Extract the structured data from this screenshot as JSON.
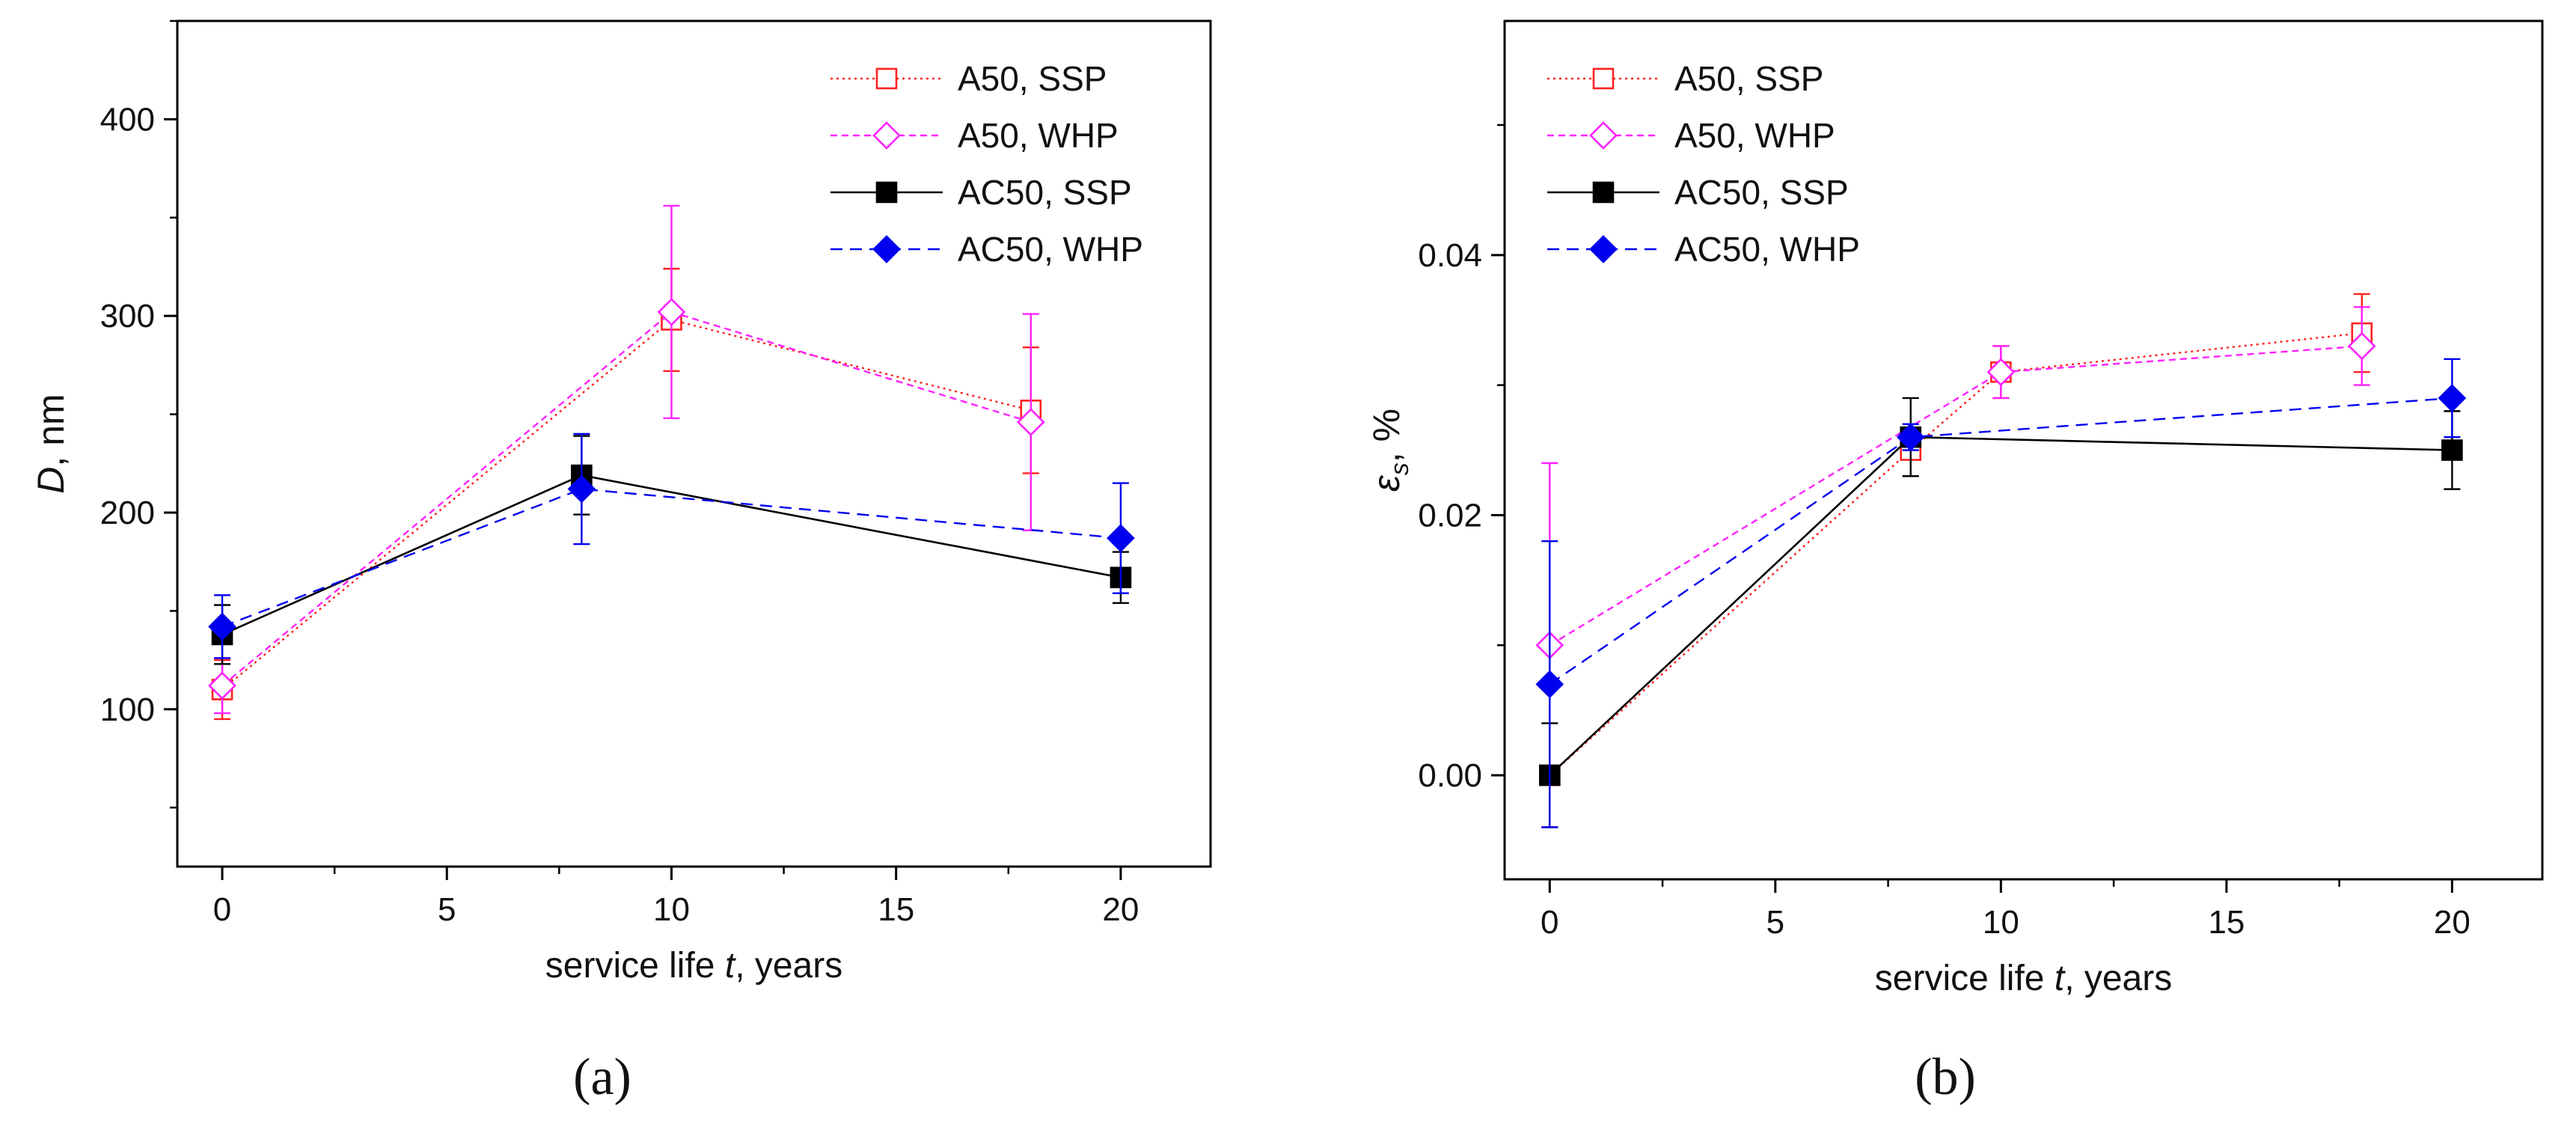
{
  "figure": {
    "panels": [
      "(a)",
      "(b)"
    ]
  },
  "series_styles": [
    {
      "name": "A50, SSP",
      "color": "#ff2020",
      "marker": "square-open",
      "line": "dotted"
    },
    {
      "name": "A50, WHP",
      "color": "#ff22ff",
      "marker": "diamond-open",
      "line": "short-dash"
    },
    {
      "name": "AC50, SSP",
      "color": "#000000",
      "marker": "square-filled",
      "line": "solid"
    },
    {
      "name": "AC50, WHP",
      "color": "#0000ee",
      "marker": "diamond-filled",
      "line": "dashed"
    }
  ],
  "chart_data": [
    {
      "type": "line",
      "panel": "(a)",
      "title": "",
      "xlabel_prefix": "service life ",
      "xlabel_var": "t",
      "xlabel_suffix": ", years",
      "ylabel_var": "D",
      "ylabel_suffix": ", nm",
      "xlim": [
        -1,
        22
      ],
      "ylim": [
        20,
        450
      ],
      "xticks": [
        0,
        5,
        10,
        15,
        20
      ],
      "xtick_labels": [
        "0",
        "5",
        "10",
        "15",
        "20"
      ],
      "yticks": [
        100,
        200,
        300,
        400
      ],
      "ytick_labels": [
        "100",
        "200",
        "300",
        "400"
      ],
      "legend": "top-right",
      "grid": false,
      "series": [
        {
          "name": "A50, SSP",
          "x": [
            0,
            10,
            18
          ],
          "y": [
            110,
            298,
            252
          ],
          "err": [
            15,
            26,
            32
          ]
        },
        {
          "name": "A50, WHP",
          "x": [
            0,
            10,
            18
          ],
          "y": [
            112,
            302,
            246
          ],
          "err": [
            14,
            54,
            55
          ]
        },
        {
          "name": "AC50, SSP",
          "x": [
            0,
            8,
            20
          ],
          "y": [
            138,
            219,
            167
          ],
          "err": [
            15,
            20,
            13
          ]
        },
        {
          "name": "AC50, WHP",
          "x": [
            0,
            8,
            20
          ],
          "y": [
            142,
            212,
            187
          ],
          "err": [
            16,
            28,
            28
          ]
        }
      ]
    },
    {
      "type": "line",
      "panel": "(b)",
      "title": "",
      "xlabel_prefix": "service life ",
      "xlabel_var": "t",
      "xlabel_suffix": ", years",
      "ylabel_var": "ε",
      "ylabel_sub": "s",
      "ylabel_suffix": ", %",
      "xlim": [
        -1,
        22
      ],
      "ylim": [
        -0.008,
        0.058
      ],
      "xticks": [
        0,
        5,
        10,
        15,
        20
      ],
      "xtick_labels": [
        "0",
        "5",
        "10",
        "15",
        "20"
      ],
      "yticks": [
        0.0,
        0.02,
        0.04
      ],
      "ytick_labels": [
        "0.00",
        "0.02",
        "0.04"
      ],
      "legend": "top-left",
      "grid": false,
      "series": [
        {
          "name": "A50, SSP",
          "x": [
            0,
            8,
            10,
            18
          ],
          "y": [
            0.0,
            0.025,
            0.031,
            0.034
          ],
          "err": [
            0,
            0,
            0.002,
            0.003
          ]
        },
        {
          "name": "A50, WHP",
          "x": [
            0,
            10,
            18
          ],
          "y": [
            0.01,
            0.031,
            0.033
          ],
          "err": [
            0.014,
            0.002,
            0.003
          ]
        },
        {
          "name": "AC50, SSP",
          "x": [
            0,
            8,
            20
          ],
          "y": [
            0.0,
            0.026,
            0.025
          ],
          "err": [
            0.004,
            0.003,
            0.003
          ]
        },
        {
          "name": "AC50, WHP",
          "x": [
            0,
            8,
            20
          ],
          "y": [
            0.007,
            0.026,
            0.029
          ],
          "err": [
            0.011,
            0.001,
            0.003
          ]
        }
      ]
    }
  ]
}
